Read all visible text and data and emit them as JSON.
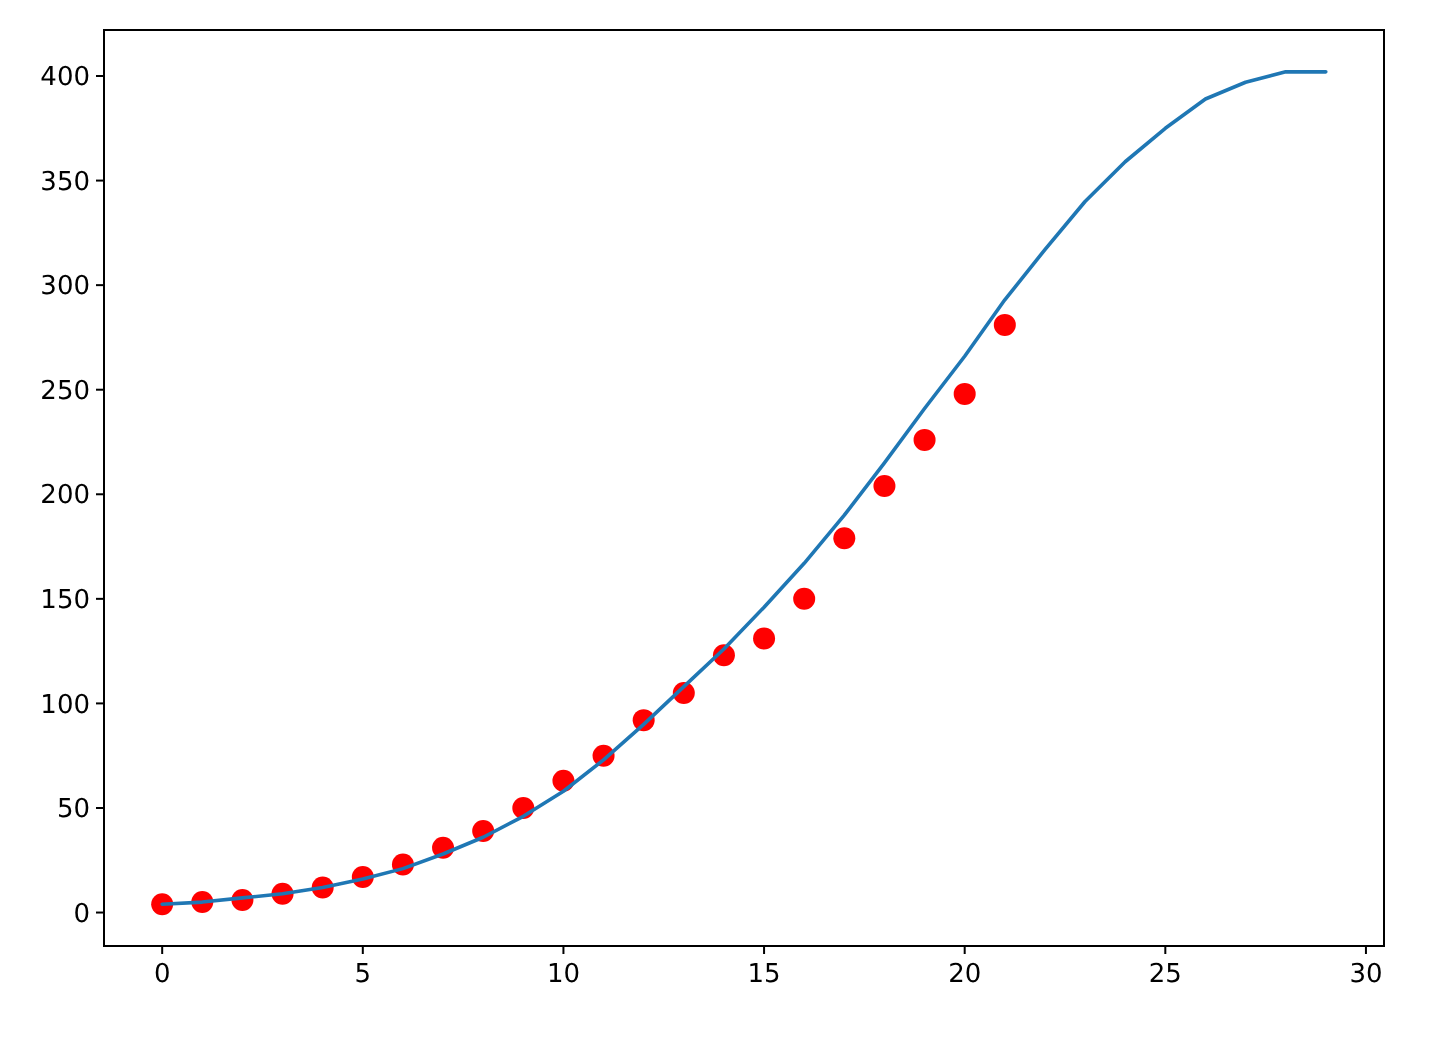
{
  "chart_data": {
    "type": "line",
    "xlim": [
      -1.45,
      30.45
    ],
    "ylim": [
      -16,
      422
    ],
    "xticks": [
      0,
      5,
      10,
      15,
      20,
      25,
      30
    ],
    "yticks": [
      0,
      50,
      100,
      150,
      200,
      250,
      300,
      350,
      400
    ],
    "grid": false,
    "series": [
      {
        "type": "scatter",
        "color": "#ff0000",
        "marker": "circle",
        "x": [
          0,
          1,
          2,
          3,
          4,
          5,
          6,
          7,
          8,
          9,
          10,
          11,
          12,
          13,
          14,
          15,
          16,
          17,
          18,
          19,
          20,
          21
        ],
        "values": [
          4,
          5,
          6,
          9,
          12,
          17,
          23,
          31,
          39,
          50,
          63,
          75,
          92,
          105,
          123,
          131,
          150,
          179,
          204,
          226,
          248,
          281
        ]
      },
      {
        "color": "#1f77b4",
        "marker": "none",
        "x": [
          0,
          1,
          2,
          3,
          4,
          5,
          6,
          7,
          8,
          9,
          10,
          11,
          12,
          13,
          14,
          15,
          16,
          17,
          18,
          19,
          20,
          21,
          22,
          23,
          24,
          25,
          26,
          27,
          28,
          29
        ],
        "values": [
          4,
          5,
          7,
          9,
          12,
          16,
          21,
          28,
          36,
          46,
          58,
          73,
          90,
          108,
          126,
          146,
          167,
          190,
          215,
          241,
          266,
          293,
          317,
          340,
          359,
          375,
          389,
          397,
          402,
          402
        ]
      }
    ]
  }
}
